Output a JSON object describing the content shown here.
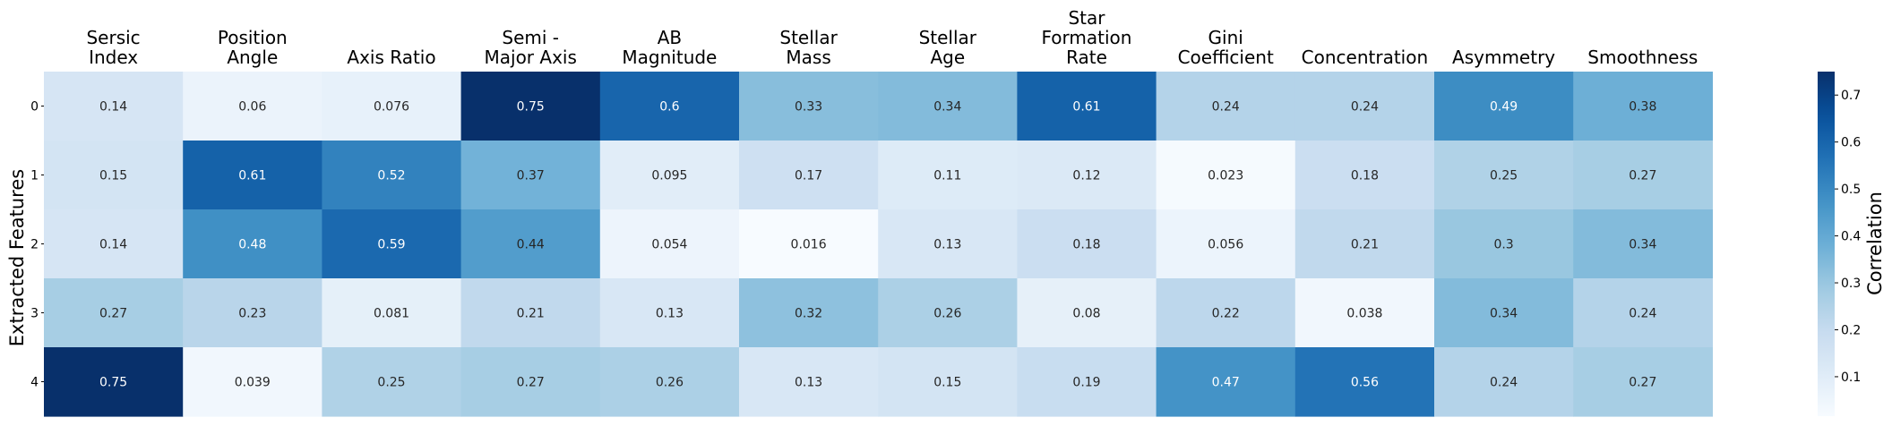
{
  "chart_data": {
    "type": "heatmap",
    "columns": [
      [
        "Sersic",
        "Index"
      ],
      [
        "Position",
        "Angle"
      ],
      [
        "Axis Ratio"
      ],
      [
        "Semi -",
        "Major Axis"
      ],
      [
        "AB",
        "Magnitude"
      ],
      [
        "Stellar",
        "Mass"
      ],
      [
        "Stellar",
        "Age"
      ],
      [
        "Star",
        "Formation",
        "Rate"
      ],
      [
        "Gini",
        "Coefficient"
      ],
      [
        "Concentration"
      ],
      [
        "Asymmetry"
      ],
      [
        "Smoothness"
      ]
    ],
    "rows": [
      "0",
      "1",
      "2",
      "3",
      "4"
    ],
    "ylabel": "Extracted Features",
    "values": [
      [
        0.14,
        0.06,
        0.076,
        0.75,
        0.6,
        0.33,
        0.34,
        0.61,
        0.24,
        0.24,
        0.49,
        0.38
      ],
      [
        0.15,
        0.61,
        0.52,
        0.37,
        0.095,
        0.17,
        0.11,
        0.12,
        0.023,
        0.18,
        0.25,
        0.27
      ],
      [
        0.14,
        0.48,
        0.59,
        0.44,
        0.054,
        0.016,
        0.13,
        0.18,
        0.056,
        0.21,
        0.3,
        0.34
      ],
      [
        0.27,
        0.23,
        0.081,
        0.21,
        0.13,
        0.32,
        0.26,
        0.08,
        0.22,
        0.038,
        0.34,
        0.24
      ],
      [
        0.75,
        0.039,
        0.25,
        0.27,
        0.26,
        0.13,
        0.15,
        0.19,
        0.47,
        0.56,
        0.24,
        0.27
      ]
    ],
    "colormap": "Blues",
    "vmin": 0.016,
    "vmax": 0.75,
    "colorbar": {
      "label": "Correlation",
      "ticks": [
        0.1,
        0.2,
        0.3,
        0.4,
        0.5,
        0.6,
        0.7
      ]
    }
  }
}
